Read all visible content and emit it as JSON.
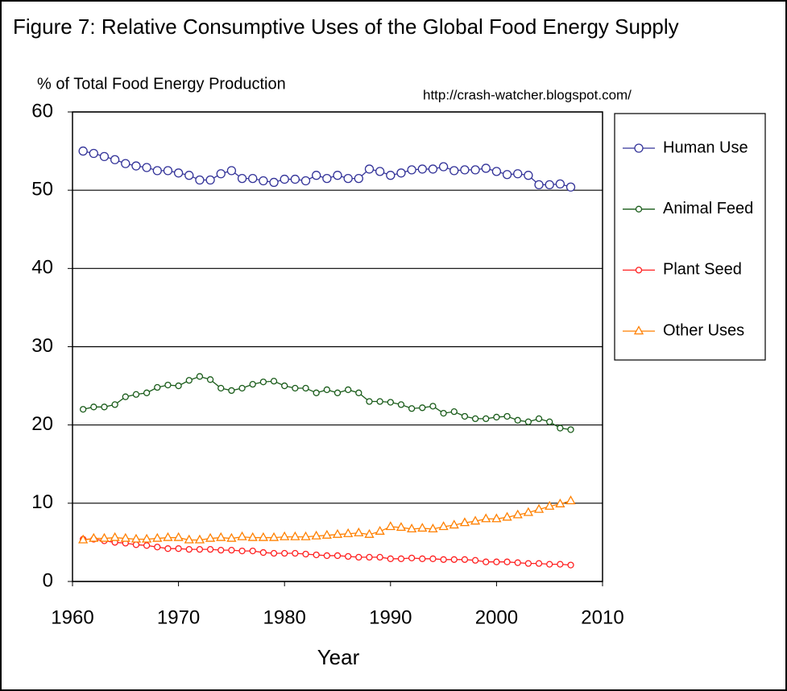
{
  "chart_data": {
    "type": "line",
    "title": "Figure 7: Relative Consumptive Uses of the Global Food Energy Supply",
    "y_label": "% of Total Food Energy Production",
    "x_label": "Year",
    "annotation": "http://crash-watcher.blogspot.com/",
    "x": [
      1961,
      1962,
      1963,
      1964,
      1965,
      1966,
      1967,
      1968,
      1969,
      1970,
      1971,
      1972,
      1973,
      1974,
      1975,
      1976,
      1977,
      1978,
      1979,
      1980,
      1981,
      1982,
      1983,
      1984,
      1985,
      1986,
      1987,
      1988,
      1989,
      1990,
      1991,
      1992,
      1993,
      1994,
      1995,
      1996,
      1997,
      1998,
      1999,
      2000,
      2001,
      2002,
      2003,
      2004,
      2005,
      2006,
      2007
    ],
    "series": [
      {
        "name": "Human Use",
        "color": "#333399",
        "marker": "circle",
        "values": [
          55.0,
          54.7,
          54.3,
          53.9,
          53.4,
          53.1,
          52.9,
          52.5,
          52.5,
          52.2,
          51.9,
          51.3,
          51.3,
          52.1,
          52.5,
          51.5,
          51.5,
          51.2,
          51.0,
          51.4,
          51.4,
          51.2,
          51.9,
          51.5,
          51.9,
          51.5,
          51.5,
          52.7,
          52.4,
          51.9,
          52.2,
          52.6,
          52.7,
          52.7,
          53.0,
          52.5,
          52.6,
          52.6,
          52.8,
          52.4,
          52.0,
          52.1,
          51.9,
          50.7,
          50.7,
          50.8,
          50.4
        ]
      },
      {
        "name": "Animal Feed",
        "color": "#1a5c1a",
        "marker": "small-circle",
        "values": [
          22.0,
          22.3,
          22.3,
          22.6,
          23.6,
          23.9,
          24.1,
          24.8,
          25.1,
          25.0,
          25.7,
          26.2,
          25.8,
          24.7,
          24.4,
          24.7,
          25.2,
          25.5,
          25.6,
          25.0,
          24.7,
          24.7,
          24.1,
          24.5,
          24.1,
          24.5,
          24.1,
          23.0,
          23.0,
          22.9,
          22.6,
          22.1,
          22.2,
          22.4,
          21.5,
          21.7,
          21.1,
          20.8,
          20.8,
          21.0,
          21.1,
          20.6,
          20.4,
          20.8,
          20.4,
          19.6,
          19.4
        ]
      },
      {
        "name": "Plant Seed",
        "color": "#ff2020",
        "marker": "small-circle",
        "values": [
          5.4,
          5.4,
          5.2,
          5.0,
          4.9,
          4.7,
          4.6,
          4.4,
          4.2,
          4.2,
          4.1,
          4.1,
          4.1,
          4.0,
          4.0,
          3.9,
          3.9,
          3.7,
          3.6,
          3.6,
          3.6,
          3.5,
          3.4,
          3.3,
          3.3,
          3.2,
          3.1,
          3.1,
          3.1,
          2.9,
          2.9,
          3.0,
          2.9,
          2.9,
          2.8,
          2.8,
          2.8,
          2.7,
          2.5,
          2.5,
          2.5,
          2.4,
          2.3,
          2.3,
          2.2,
          2.2,
          2.1
        ]
      },
      {
        "name": "Other Uses",
        "color": "#ff8000",
        "marker": "triangle",
        "values": [
          5.3,
          5.5,
          5.5,
          5.6,
          5.5,
          5.4,
          5.4,
          5.5,
          5.6,
          5.6,
          5.3,
          5.3,
          5.5,
          5.6,
          5.5,
          5.7,
          5.6,
          5.6,
          5.6,
          5.7,
          5.7,
          5.7,
          5.8,
          5.9,
          6.0,
          6.1,
          6.2,
          6.0,
          6.4,
          7.0,
          6.9,
          6.7,
          6.8,
          6.7,
          7.0,
          7.2,
          7.5,
          7.7,
          8.0,
          8.0,
          8.2,
          8.5,
          8.8,
          9.2,
          9.6,
          9.9,
          10.3
        ]
      }
    ],
    "xlim": [
      1960,
      2010
    ],
    "xticks": [
      1960,
      1970,
      1980,
      1990,
      2000,
      2010
    ],
    "ylim": [
      0,
      60
    ],
    "yticks": [
      0,
      10,
      20,
      30,
      40,
      50,
      60
    ],
    "grid": true,
    "legend": "right"
  }
}
